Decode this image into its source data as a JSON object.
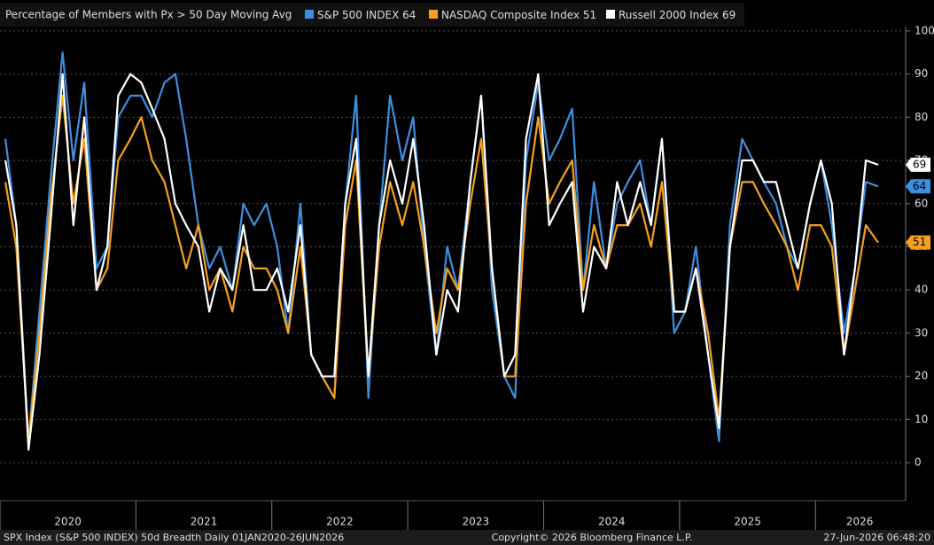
{
  "chart_data": {
    "type": "line",
    "title": "Percentage of Members with Px > 50 Day Moving Avg",
    "x": [
      2020.04,
      2020.12,
      2020.21,
      2020.29,
      2020.37,
      2020.46,
      2020.54,
      2020.62,
      2020.71,
      2020.79,
      2020.87,
      2020.96,
      2021.04,
      2021.12,
      2021.21,
      2021.29,
      2021.37,
      2021.46,
      2021.54,
      2021.62,
      2021.71,
      2021.79,
      2021.87,
      2021.96,
      2022.04,
      2022.12,
      2022.21,
      2022.29,
      2022.37,
      2022.46,
      2022.54,
      2022.62,
      2022.71,
      2022.79,
      2022.87,
      2022.96,
      2023.04,
      2023.12,
      2023.21,
      2023.29,
      2023.37,
      2023.46,
      2023.54,
      2023.62,
      2023.71,
      2023.79,
      2023.87,
      2023.96,
      2024.04,
      2024.12,
      2024.21,
      2024.29,
      2024.37,
      2024.46,
      2024.54,
      2024.62,
      2024.71,
      2024.79,
      2024.87,
      2024.96,
      2025.04,
      2025.12,
      2025.21,
      2025.29,
      2025.37,
      2025.46,
      2025.54,
      2025.62,
      2025.71,
      2025.79,
      2025.87,
      2025.96,
      2026.04,
      2026.12,
      2026.21,
      2026.29,
      2026.37,
      2026.46
    ],
    "series": [
      {
        "name": "S&P 500 INDEX",
        "color": "#3d8fe0",
        "values": [
          75,
          55,
          5,
          35,
          65,
          95,
          70,
          88,
          45,
          50,
          80,
          85,
          85,
          80,
          88,
          90,
          75,
          55,
          45,
          50,
          40,
          60,
          55,
          60,
          50,
          30,
          60,
          25,
          20,
          15,
          60,
          85,
          15,
          55,
          85,
          70,
          80,
          50,
          25,
          50,
          40,
          65,
          85,
          40,
          20,
          15,
          70,
          88,
          70,
          75,
          82,
          40,
          65,
          45,
          60,
          65,
          70,
          55,
          75,
          30,
          35,
          50,
          25,
          5,
          55,
          75,
          70,
          65,
          60,
          50,
          45,
          60,
          70,
          55,
          30,
          45,
          65,
          64
        ]
      },
      {
        "name": "NASDAQ Composite Index",
        "color": "#f7a01e",
        "values": [
          65,
          50,
          5,
          30,
          60,
          85,
          60,
          75,
          40,
          45,
          70,
          75,
          80,
          70,
          65,
          55,
          45,
          55,
          40,
          45,
          35,
          50,
          45,
          45,
          40,
          30,
          50,
          25,
          20,
          15,
          55,
          70,
          20,
          50,
          65,
          55,
          65,
          50,
          30,
          45,
          40,
          60,
          75,
          45,
          20,
          20,
          60,
          80,
          60,
          65,
          70,
          40,
          55,
          45,
          55,
          55,
          60,
          50,
          65,
          35,
          35,
          45,
          30,
          10,
          50,
          65,
          65,
          60,
          55,
          50,
          40,
          55,
          55,
          50,
          25,
          40,
          55,
          51
        ]
      },
      {
        "name": "Russell 2000 Index",
        "color": "#ffffff",
        "values": [
          70,
          55,
          3,
          25,
          55,
          90,
          55,
          80,
          40,
          50,
          85,
          90,
          88,
          82,
          75,
          60,
          55,
          50,
          35,
          45,
          40,
          55,
          40,
          40,
          45,
          35,
          55,
          25,
          20,
          20,
          60,
          75,
          20,
          55,
          70,
          60,
          75,
          55,
          25,
          40,
          35,
          65,
          85,
          45,
          20,
          25,
          75,
          90,
          55,
          60,
          65,
          35,
          50,
          45,
          65,
          55,
          65,
          55,
          75,
          35,
          35,
          45,
          25,
          8,
          50,
          70,
          70,
          65,
          65,
          55,
          45,
          60,
          70,
          60,
          25,
          45,
          70,
          69
        ]
      }
    ],
    "xlim": [
      2020,
      2026.65
    ],
    "xticks": [
      {
        "value": 2020,
        "label": "2020"
      },
      {
        "value": 2021,
        "label": "2021"
      },
      {
        "value": 2022,
        "label": "2022"
      },
      {
        "value": 2023,
        "label": "2023"
      },
      {
        "value": 2024,
        "label": "2024"
      },
      {
        "value": 2025,
        "label": "2025"
      },
      {
        "value": 2026,
        "label": "2026"
      }
    ],
    "ylim": [
      -8.8,
      101
    ],
    "yticks": [
      0,
      10,
      20,
      30,
      40,
      50,
      60,
      70,
      80,
      90,
      100
    ],
    "grid": true,
    "footer_left": "SPX Index (S&P 500 INDEX) 50d Breadth Daily 01JAN2020-26JUN2026",
    "footer_center": "Copyright© 2026 Bloomberg Finance L.P.",
    "footer_right": "27-Jun-2026 06:48:20"
  }
}
